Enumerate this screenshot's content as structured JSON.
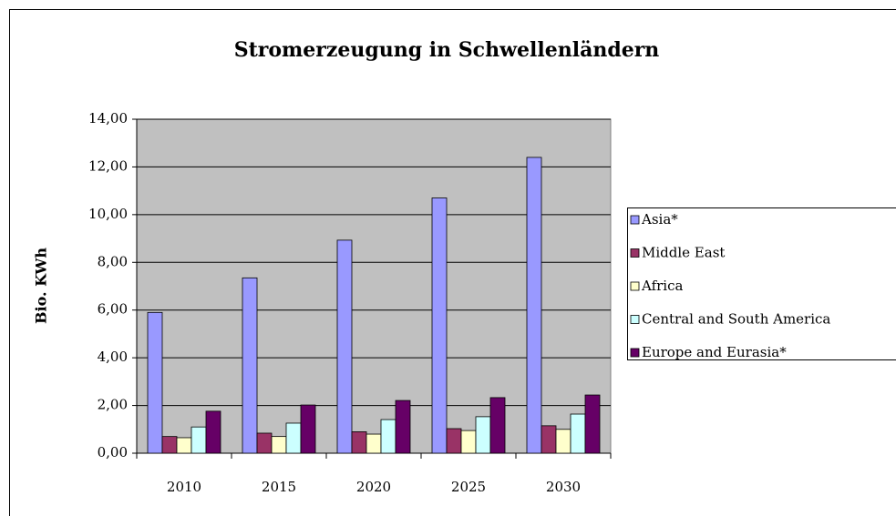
{
  "chart_data": {
    "type": "bar",
    "title": "Stromerzeugung in Schwellenländern",
    "y_label": "Bio. KWh",
    "categories": [
      "2010",
      "2015",
      "2020",
      "2025",
      "2030"
    ],
    "series": [
      {
        "name": "Asia*",
        "color": "#9999ff",
        "values": [
          5.9,
          7.35,
          8.93,
          10.7,
          12.4
        ]
      },
      {
        "name": "Middle East",
        "color": "#993366",
        "values": [
          0.7,
          0.84,
          0.9,
          1.03,
          1.15
        ]
      },
      {
        "name": "Africa",
        "color": "#ffffcc",
        "values": [
          0.65,
          0.7,
          0.8,
          0.95,
          1.0
        ]
      },
      {
        "name": "Central and South America",
        "color": "#ccffff",
        "values": [
          1.1,
          1.26,
          1.41,
          1.53,
          1.64
        ]
      },
      {
        "name": "Europe and Eurasia*",
        "color": "#660066",
        "values": [
          1.76,
          2.02,
          2.21,
          2.33,
          2.44
        ]
      }
    ],
    "ylim": [
      0,
      14
    ],
    "yticks": [
      {
        "value": 0,
        "label": "0,00"
      },
      {
        "value": 2,
        "label": "2,00"
      },
      {
        "value": 4,
        "label": "4,00"
      },
      {
        "value": 6,
        "label": "6,00"
      },
      {
        "value": 8,
        "label": "8,00"
      },
      {
        "value": 10,
        "label": "10,00"
      },
      {
        "value": 12,
        "label": "12,00"
      },
      {
        "value": 14,
        "label": "14,00"
      }
    ],
    "grid": true,
    "plot_background": "#c0c0c0",
    "legend": "right"
  }
}
